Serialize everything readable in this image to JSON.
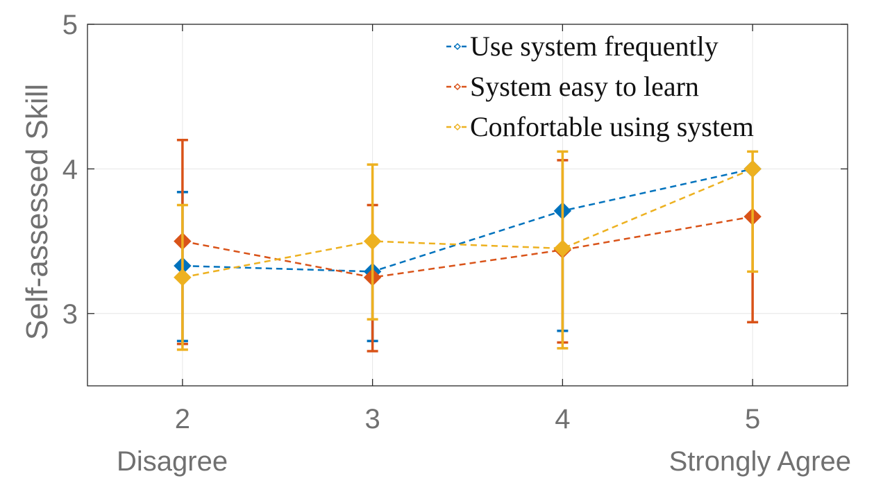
{
  "chart_data": {
    "type": "line",
    "ylabel": "Self-assessed Skill",
    "x": [
      2,
      3,
      4,
      5
    ],
    "xlim": [
      1.5,
      5.5
    ],
    "ylim": [
      2.5,
      5
    ],
    "xticks": [
      2,
      3,
      4,
      5
    ],
    "yticks": [
      3,
      4,
      5
    ],
    "category_labels": [
      {
        "x": 2,
        "text": "Disagree"
      },
      {
        "x": 5,
        "text": "Strongly Agree"
      }
    ],
    "grid": true,
    "legend_position": "top-right",
    "series": [
      {
        "name": "Use system frequently",
        "color": "#0072BD",
        "values": [
          3.33,
          3.29,
          3.71,
          4.0
        ],
        "err_low": [
          2.81,
          2.81,
          2.88,
          4.0
        ],
        "err_high": [
          3.84,
          3.29,
          3.71,
          4.0
        ]
      },
      {
        "name": "System easy to learn",
        "color": "#D95319",
        "values": [
          3.5,
          3.25,
          3.44,
          3.67
        ],
        "err_low": [
          2.79,
          2.74,
          2.8,
          2.94
        ],
        "err_high": [
          4.2,
          3.75,
          4.06,
          3.67
        ]
      },
      {
        "name": "Confortable using system",
        "color": "#EDB120",
        "values": [
          3.25,
          3.5,
          3.45,
          4.0
        ],
        "err_low": [
          2.75,
          2.96,
          2.76,
          3.29
        ],
        "err_high": [
          3.75,
          4.03,
          4.12,
          4.12
        ]
      }
    ]
  }
}
